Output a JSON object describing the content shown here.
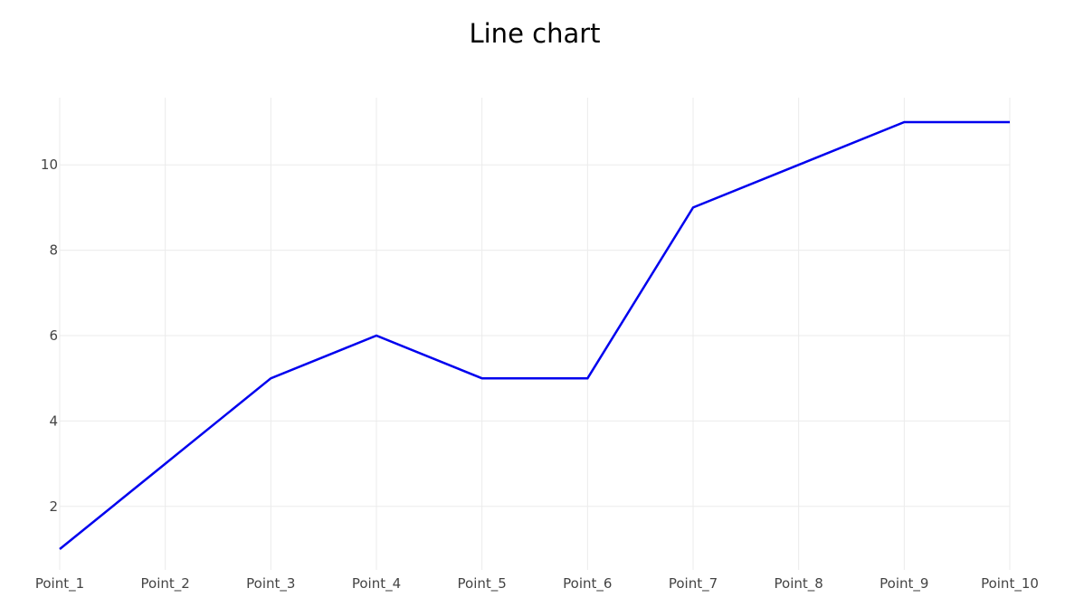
{
  "chart_data": {
    "type": "line",
    "title": "Line chart",
    "xlabel": "",
    "ylabel": "",
    "categories": [
      "Point_1",
      "Point_2",
      "Point_3",
      "Point_4",
      "Point_5",
      "Point_6",
      "Point_7",
      "Point_8",
      "Point_9",
      "Point_10"
    ],
    "series": [
      {
        "values": [
          1,
          3,
          5,
          6,
          5,
          5,
          9,
          10,
          11,
          11
        ],
        "color": "#0000ee"
      }
    ],
    "y_ticks": [
      2,
      4,
      6,
      8,
      10
    ],
    "ylim": [
      1,
      11.5
    ],
    "grid": true,
    "legend": "none"
  }
}
